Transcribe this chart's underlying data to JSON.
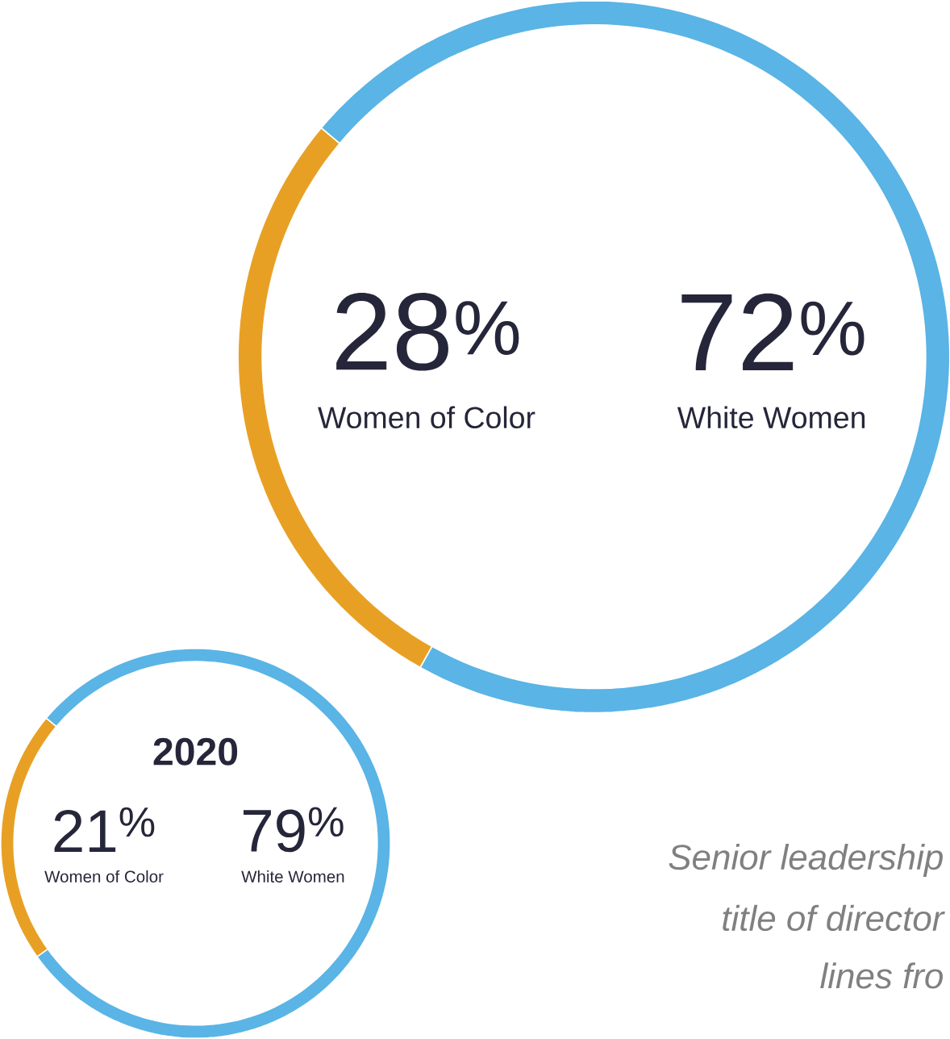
{
  "chart_data": [
    {
      "type": "donut",
      "categories": [
        "Women of Color",
        "White Women"
      ],
      "values": [
        28,
        72
      ],
      "colors": [
        "#e8a024",
        "#5ab4e5"
      ],
      "value_labels": [
        "28$^{%}$",
        "72$^{%}$"
      ],
      "annotations": [
        "Senior leadership",
        "title of director",
        "lines fro"
      ]
    },
    {
      "type": "donut",
      "title": "2020",
      "categories": [
        "Women of Color",
        "White Women"
      ],
      "values": [
        21,
        79
      ],
      "colors": [
        "#e8a024",
        "#5ab4e5"
      ],
      "value_labels": [
        "21$^{%}$",
        "79$^{%}$"
      ]
    }
  ]
}
